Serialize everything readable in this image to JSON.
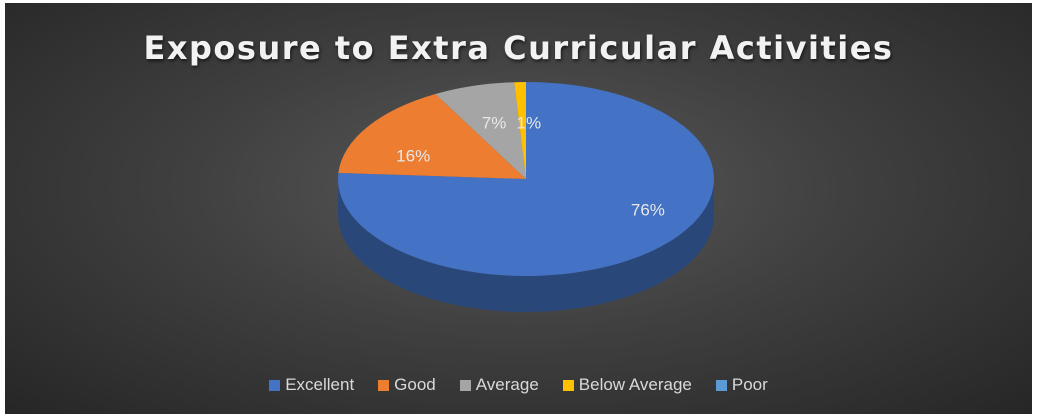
{
  "chart_data": {
    "type": "pie",
    "title": "Exposure to Extra Curricular Activities",
    "categories": [
      "Excellent",
      "Good",
      "Average",
      "Below Average",
      "Poor"
    ],
    "values": [
      76,
      16,
      7,
      1,
      0
    ],
    "data_labels": [
      "76%",
      "16%",
      "7%",
      "1%",
      ""
    ],
    "colors": [
      "#4472c4",
      "#ed7d31",
      "#a5a5a5",
      "#ffc000",
      "#5b9bd5"
    ],
    "legend_position": "bottom",
    "style": "3d"
  }
}
